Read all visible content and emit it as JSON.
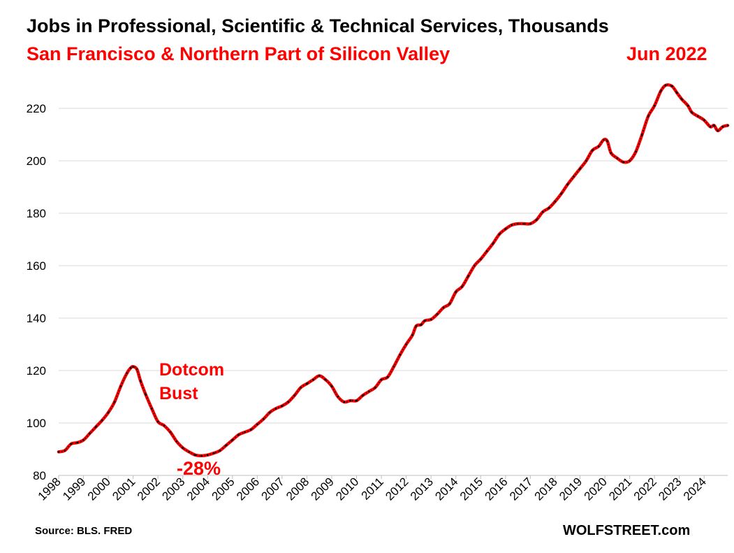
{
  "chart_data": {
    "type": "line",
    "title": "Jobs in Professional, Scientific & Technical Services, Thousands",
    "subtitle": "San Francisco & Northern Part of Silicon Valley",
    "xlabel": "",
    "ylabel": "",
    "ylim": [
      80,
      232
    ],
    "y_ticks": [
      80,
      100,
      120,
      140,
      160,
      180,
      200,
      220
    ],
    "x_range": [
      1998.0,
      2024.95
    ],
    "x_tick_labels": [
      "1998",
      "1999",
      "2000",
      "2001",
      "2002",
      "2003",
      "2004",
      "2005",
      "2006",
      "2007",
      "2008",
      "2009",
      "2010",
      "2011",
      "2012",
      "2013",
      "2014",
      "2015",
      "2016",
      "2017",
      "2018",
      "2019",
      "2020",
      "2021",
      "2022",
      "2023",
      "2024"
    ],
    "grid": true,
    "line_color": "#ff0000",
    "marker_color": "#000000",
    "series": [
      {
        "name": "Jobs (thousands)",
        "points": [
          [
            1998.0,
            89.0
          ],
          [
            1998.25,
            89.5
          ],
          [
            1998.5,
            92.0
          ],
          [
            1998.75,
            92.5
          ],
          [
            1999.0,
            93.5
          ],
          [
            1999.25,
            96.0
          ],
          [
            1999.5,
            98.5
          ],
          [
            1999.75,
            101.0
          ],
          [
            2000.0,
            104.0
          ],
          [
            2000.25,
            108.0
          ],
          [
            2000.5,
            114.0
          ],
          [
            2000.75,
            119.0
          ],
          [
            2000.9,
            121.0
          ],
          [
            2001.0,
            121.5
          ],
          [
            2001.15,
            120.5
          ],
          [
            2001.3,
            116.0
          ],
          [
            2001.5,
            111.0
          ],
          [
            2001.75,
            105.5
          ],
          [
            2002.0,
            100.5
          ],
          [
            2002.25,
            99.0
          ],
          [
            2002.5,
            96.5
          ],
          [
            2002.75,
            93.0
          ],
          [
            2003.0,
            90.5
          ],
          [
            2003.25,
            89.0
          ],
          [
            2003.5,
            87.8
          ],
          [
            2003.75,
            87.5
          ],
          [
            2004.0,
            87.8
          ],
          [
            2004.25,
            88.5
          ],
          [
            2004.5,
            89.5
          ],
          [
            2004.75,
            91.5
          ],
          [
            2005.0,
            93.5
          ],
          [
            2005.25,
            95.5
          ],
          [
            2005.5,
            96.5
          ],
          [
            2005.75,
            97.5
          ],
          [
            2006.0,
            99.5
          ],
          [
            2006.25,
            101.5
          ],
          [
            2006.5,
            104.0
          ],
          [
            2006.75,
            105.5
          ],
          [
            2007.0,
            106.5
          ],
          [
            2007.25,
            108.0
          ],
          [
            2007.5,
            110.5
          ],
          [
            2007.75,
            113.5
          ],
          [
            2008.0,
            115.0
          ],
          [
            2008.25,
            116.5
          ],
          [
            2008.5,
            118.0
          ],
          [
            2008.75,
            116.5
          ],
          [
            2009.0,
            114.0
          ],
          [
            2009.25,
            110.0
          ],
          [
            2009.5,
            108.0
          ],
          [
            2009.75,
            108.5
          ],
          [
            2010.0,
            108.5
          ],
          [
            2010.25,
            110.5
          ],
          [
            2010.5,
            112.0
          ],
          [
            2010.75,
            113.5
          ],
          [
            2011.0,
            116.5
          ],
          [
            2011.25,
            117.5
          ],
          [
            2011.5,
            121.5
          ],
          [
            2011.75,
            126.0
          ],
          [
            2012.0,
            130.0
          ],
          [
            2012.25,
            133.5
          ],
          [
            2012.4,
            137.0
          ],
          [
            2012.6,
            137.5
          ],
          [
            2012.75,
            139.0
          ],
          [
            2013.0,
            139.5
          ],
          [
            2013.25,
            141.5
          ],
          [
            2013.5,
            144.0
          ],
          [
            2013.75,
            145.5
          ],
          [
            2014.0,
            150.0
          ],
          [
            2014.25,
            152.0
          ],
          [
            2014.5,
            156.0
          ],
          [
            2014.75,
            160.0
          ],
          [
            2015.0,
            162.5
          ],
          [
            2015.25,
            165.5
          ],
          [
            2015.5,
            168.5
          ],
          [
            2015.75,
            172.0
          ],
          [
            2016.0,
            174.0
          ],
          [
            2016.25,
            175.5
          ],
          [
            2016.5,
            176.0
          ],
          [
            2016.75,
            176.0
          ],
          [
            2017.0,
            176.0
          ],
          [
            2017.25,
            177.5
          ],
          [
            2017.5,
            180.5
          ],
          [
            2017.75,
            182.0
          ],
          [
            2018.0,
            184.5
          ],
          [
            2018.25,
            187.5
          ],
          [
            2018.5,
            191.0
          ],
          [
            2018.75,
            194.0
          ],
          [
            2019.0,
            197.0
          ],
          [
            2019.25,
            200.0
          ],
          [
            2019.5,
            204.0
          ],
          [
            2019.75,
            205.5
          ],
          [
            2019.95,
            208.0
          ],
          [
            2020.1,
            207.5
          ],
          [
            2020.25,
            203.0
          ],
          [
            2020.5,
            201.0
          ],
          [
            2020.75,
            199.5
          ],
          [
            2021.0,
            200.0
          ],
          [
            2021.25,
            203.5
          ],
          [
            2021.5,
            210.0
          ],
          [
            2021.75,
            217.0
          ],
          [
            2022.0,
            221.0
          ],
          [
            2022.25,
            226.5
          ],
          [
            2022.45,
            228.8
          ],
          [
            2022.7,
            228.5
          ],
          [
            2022.9,
            226.0
          ],
          [
            2023.1,
            223.5
          ],
          [
            2023.35,
            221.0
          ],
          [
            2023.5,
            218.5
          ],
          [
            2023.75,
            217.0
          ],
          [
            2024.0,
            215.5
          ],
          [
            2024.25,
            213.0
          ],
          [
            2024.4,
            213.5
          ],
          [
            2024.55,
            211.5
          ],
          [
            2024.75,
            213.0
          ],
          [
            2024.95,
            213.5
          ]
        ]
      }
    ],
    "annotations": {
      "peak_label": "Jun 2022",
      "bust_line1": "Dotcom",
      "bust_line2": "Bust",
      "drop_label": "-28%"
    },
    "source": "Source: BLS. FRED",
    "brand": "WOLFSTREET.com"
  }
}
